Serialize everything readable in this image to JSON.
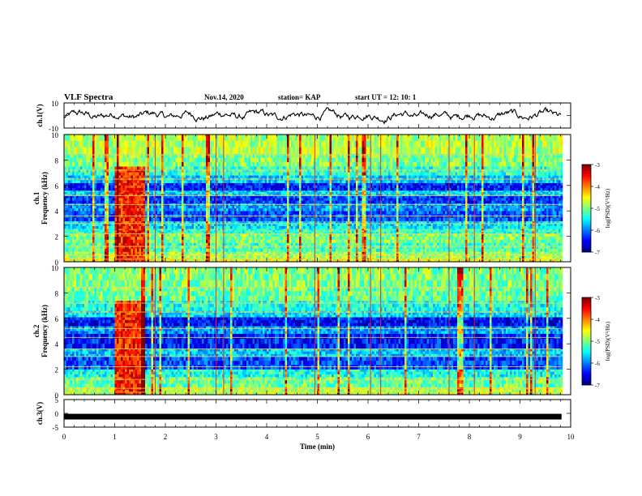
{
  "header": {
    "title": "VLF Spectra",
    "date": "Nov.14, 2020",
    "station": "station= KAP",
    "start": "start  UT  =   12: 10: 1"
  },
  "chart_data": [
    {
      "type": "line",
      "ylabel": "ch.1(V)",
      "ylim": [
        -10,
        10
      ],
      "yticks": [
        10,
        -10
      ],
      "xlim": [
        0,
        10
      ],
      "series_color": "#000000",
      "description_values": "noisy waveform oscillating roughly between -7 and +7 V, ends ~9.8 min"
    },
    {
      "type": "heatmap",
      "ylabel": "ch.1\nFrequency  (kHz)",
      "ylabel_lines": [
        "ch.1",
        "Frequency  (kHz)"
      ],
      "ylim": [
        0,
        10
      ],
      "yticks": [
        0,
        2,
        4,
        6,
        8,
        10
      ],
      "xlim": [
        0,
        10
      ],
      "data_end_min": 9.8,
      "colorbar": {
        "label": "log(PSD)(V²/Hz)",
        "ticks": [
          -3,
          -4,
          -5,
          -6,
          -7
        ],
        "range": [
          -7,
          -3
        ]
      },
      "bands": [
        {
          "f0": 0.0,
          "f1": 0.3,
          "level": -4.6
        },
        {
          "f0": 0.3,
          "f1": 0.8,
          "level": -4.9
        },
        {
          "f0": 0.8,
          "f1": 1.5,
          "level": -5.2
        },
        {
          "f0": 1.5,
          "f1": 2.2,
          "level": -5.0
        },
        {
          "f0": 2.2,
          "f1": 2.6,
          "level": -5.3
        },
        {
          "f0": 2.6,
          "f1": 3.2,
          "level": -5.6
        },
        {
          "f0": 3.2,
          "f1": 4.0,
          "level": -6.2
        },
        {
          "f0": 4.0,
          "f1": 4.6,
          "level": -5.9
        },
        {
          "f0": 4.6,
          "f1": 5.2,
          "level": -6.3
        },
        {
          "f0": 5.2,
          "f1": 5.6,
          "level": -5.6
        },
        {
          "f0": 5.6,
          "f1": 6.2,
          "level": -6.4
        },
        {
          "f0": 6.2,
          "f1": 6.8,
          "level": -5.7
        },
        {
          "f0": 6.8,
          "f1": 7.5,
          "level": -5.3
        },
        {
          "f0": 7.5,
          "f1": 8.5,
          "level": -5.0
        },
        {
          "f0": 8.5,
          "f1": 10.0,
          "level": -4.8
        }
      ],
      "burst": {
        "t0": 1.0,
        "t1": 1.6,
        "level": -3.6
      }
    },
    {
      "type": "heatmap",
      "ylabel_lines": [
        "ch.2",
        "Frequency  (kHz)"
      ],
      "ylim": [
        0,
        10
      ],
      "yticks": [
        0,
        2,
        4,
        6,
        8,
        10
      ],
      "xlim": [
        0,
        10
      ],
      "data_end_min": 9.8,
      "colorbar": {
        "label": "log(PSD)(V²/Hz)",
        "ticks": [
          -3,
          -4,
          -5,
          -6,
          -7
        ],
        "range": [
          -7,
          -3
        ]
      },
      "bands": [
        {
          "f0": 0.0,
          "f1": 0.6,
          "level": -4.8
        },
        {
          "f0": 0.6,
          "f1": 1.4,
          "level": -5.1
        },
        {
          "f0": 1.4,
          "f1": 2.0,
          "level": -5.4
        },
        {
          "f0": 2.0,
          "f1": 3.0,
          "level": -6.2
        },
        {
          "f0": 3.0,
          "f1": 3.6,
          "level": -5.7
        },
        {
          "f0": 3.6,
          "f1": 4.8,
          "level": -6.4
        },
        {
          "f0": 4.8,
          "f1": 5.4,
          "level": -5.9
        },
        {
          "f0": 5.4,
          "f1": 6.1,
          "level": -6.5
        },
        {
          "f0": 6.1,
          "f1": 6.6,
          "level": -5.6
        },
        {
          "f0": 6.6,
          "f1": 7.4,
          "level": -5.4
        },
        {
          "f0": 7.4,
          "f1": 8.5,
          "level": -5.1
        },
        {
          "f0": 8.5,
          "f1": 10.0,
          "level": -5.0
        }
      ],
      "burst": {
        "t0": 1.0,
        "t1": 1.6,
        "level": -3.6
      }
    },
    {
      "type": "line",
      "ylabel": "ch.3(V)",
      "ylim": [
        -5,
        5
      ],
      "yticks": [
        5,
        0,
        -5
      ],
      "xlim": [
        0,
        10
      ],
      "xlabel": "Time  (min)",
      "xticks": [
        0,
        1,
        2,
        3,
        4,
        5,
        6,
        7,
        8,
        9,
        10
      ],
      "constant_value": -1.2,
      "series_color": "#000000"
    }
  ]
}
